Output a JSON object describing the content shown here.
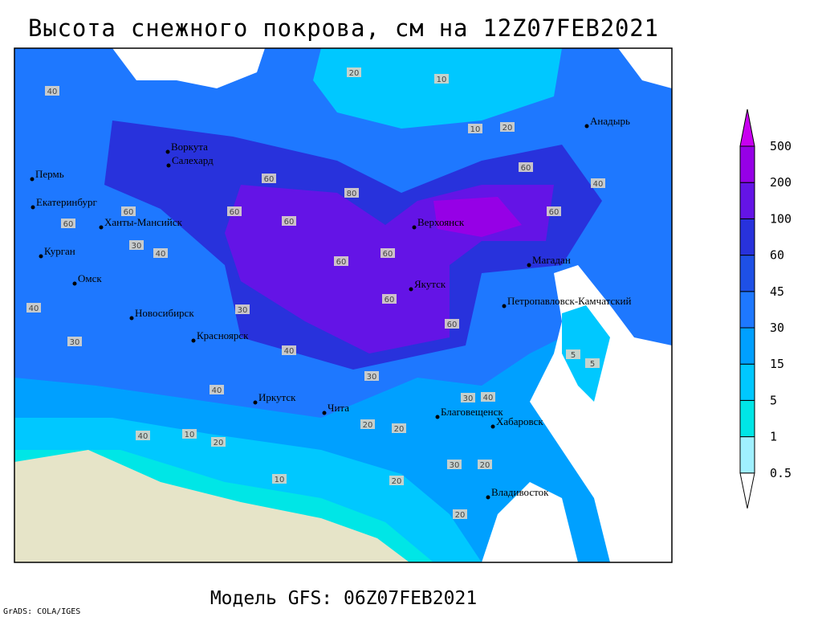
{
  "header": {
    "title": "Высота снежного покрова, см на 12Z07FEB2021"
  },
  "map": {
    "cities": [
      "Воркута",
      "Салехард",
      "Пермь",
      "Екатеринбург",
      "Ханты-Мансийск",
      "Курган",
      "Омск",
      "Новосибирск",
      "Красноярск",
      "Иркутск",
      "Чита",
      "Верхоянск",
      "Якутск",
      "Магадан",
      "Анадырь",
      "Петропавловск-Камчатский",
      "Благовещенск",
      "Хабаровск",
      "Владивосток"
    ],
    "contour_labels": [
      40,
      60,
      40,
      60,
      30,
      40,
      30,
      40,
      60,
      60,
      60,
      80,
      60,
      60,
      60,
      60,
      40,
      60,
      60,
      40,
      20,
      10,
      20,
      10,
      5,
      20,
      30,
      20,
      30,
      20,
      10,
      20,
      40,
      10,
      30,
      20,
      5,
      20,
      40,
      30
    ]
  },
  "legend": {
    "levels": [
      0.5,
      1,
      5,
      15,
      30,
      45,
      60,
      100,
      200,
      500
    ],
    "colors": [
      "#ffffff",
      "#a0f0ff",
      "#00e6e6",
      "#00c8ff",
      "#00a0ff",
      "#1e78ff",
      "#1e50e6",
      "#2832dc",
      "#6414e6",
      "#9600e6",
      "#c800f0"
    ]
  },
  "footer": {
    "model": "Модель GFS: 06Z07FEB2021",
    "credit": "GrADS: COLA/IGES"
  }
}
